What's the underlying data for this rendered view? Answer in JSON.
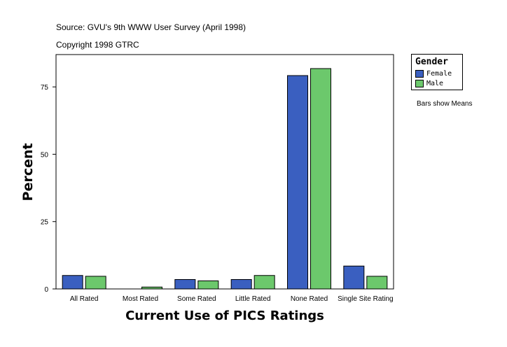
{
  "header": {
    "source": "Source: GVU's 9th WWW User Survey (April 1998)",
    "copyright": "Copyright 1998 GTRC"
  },
  "legend": {
    "title": "Gender",
    "items": [
      {
        "label": "Female",
        "color": "#3a5fc0"
      },
      {
        "label": "Male",
        "color": "#6cc86c"
      }
    ]
  },
  "note": "Bars show Means",
  "chart_data": {
    "type": "bar",
    "xlabel": "Current Use of PICS Ratings",
    "ylabel": "Percent",
    "categories": [
      "All Rated",
      "Most Rated",
      "Some Rated",
      "Little Rated",
      "None Rated",
      "Single Site Rating"
    ],
    "series": [
      {
        "name": "Female",
        "color": "#3a5fc0",
        "values": [
          5.0,
          0,
          3.5,
          3.5,
          79.2,
          8.5
        ]
      },
      {
        "name": "Male",
        "color": "#6cc86c",
        "values": [
          4.7,
          0.7,
          3.0,
          5.0,
          81.8,
          4.7
        ]
      }
    ],
    "ylim": [
      0,
      87
    ],
    "yticks": [
      0,
      25,
      50,
      75
    ],
    "grid": false,
    "legend_position": "right"
  }
}
